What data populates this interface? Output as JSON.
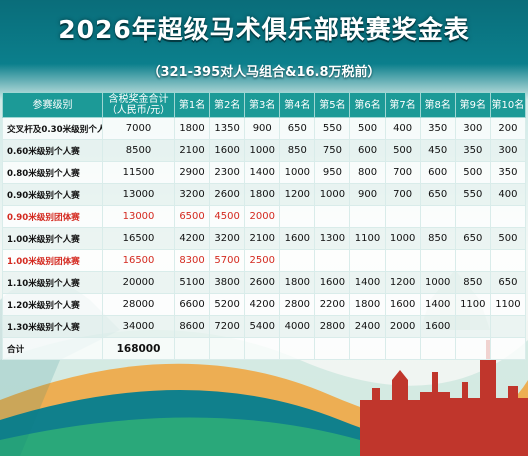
{
  "title": "2026年超级马术俱乐部联赛奖金表",
  "subtitle": "（321-395对人马组合&16.8万税前）",
  "headers": [
    "参赛级别",
    "含税奖金合计（人民币/元）",
    "第1名",
    "第2名",
    "第3名",
    "第4名",
    "第5名",
    "第6名",
    "第7名",
    "第8名",
    "第9名",
    "第10名"
  ],
  "rows": [
    {
      "level": "交叉杆及0.30米级别个人赛",
      "total": "7000",
      "prizes": [
        "1800",
        "1350",
        "900",
        "650",
        "550",
        "500",
        "400",
        "350",
        "300",
        "200"
      ],
      "highlight": false
    },
    {
      "level": "0.60米级别个人赛",
      "total": "8500",
      "prizes": [
        "2100",
        "1600",
        "1000",
        "850",
        "750",
        "600",
        "500",
        "450",
        "350",
        "300"
      ],
      "highlight": false
    },
    {
      "level": "0.80米级别个人赛",
      "total": "11500",
      "prizes": [
        "2900",
        "2300",
        "1400",
        "1000",
        "950",
        "800",
        "700",
        "600",
        "500",
        "350"
      ],
      "highlight": false
    },
    {
      "level": "0.90米级别个人赛",
      "total": "13000",
      "prizes": [
        "3200",
        "2600",
        "1800",
        "1200",
        "1000",
        "900",
        "700",
        "650",
        "550",
        "400"
      ],
      "highlight": false
    },
    {
      "level": "0.90米级别团体赛",
      "total": "13000",
      "prizes": [
        "6500",
        "4500",
        "2000",
        "",
        "",
        "",
        "",
        "",
        "",
        ""
      ],
      "highlight": true
    },
    {
      "level": "1.00米级别个人赛",
      "total": "16500",
      "prizes": [
        "4200",
        "3200",
        "2100",
        "1600",
        "1300",
        "1100",
        "1000",
        "850",
        "650",
        "500"
      ],
      "highlight": false
    },
    {
      "level": "1.00米级别团体赛",
      "total": "16500",
      "prizes": [
        "8300",
        "5700",
        "2500",
        "",
        "",
        "",
        "",
        "",
        "",
        ""
      ],
      "highlight": true
    },
    {
      "level": "1.10米级别个人赛",
      "total": "20000",
      "prizes": [
        "5100",
        "3800",
        "2600",
        "1800",
        "1600",
        "1400",
        "1200",
        "1000",
        "850",
        "650"
      ],
      "highlight": false
    },
    {
      "level": "1.20米级别个人赛",
      "total": "28000",
      "prizes": [
        "6600",
        "5200",
        "4200",
        "2800",
        "2200",
        "1800",
        "1600",
        "1400",
        "1100",
        "1100"
      ],
      "highlight": false
    },
    {
      "level": "1.30米级别个人赛",
      "total": "34000",
      "prizes": [
        "8600",
        "7200",
        "5400",
        "4000",
        "2800",
        "2400",
        "2000",
        "1600",
        "",
        ""
      ],
      "highlight": false
    }
  ],
  "footer": {
    "label": "合计",
    "total": "168000"
  },
  "colors": {
    "header": "#1c9a97",
    "highlight_text": "#d42a20",
    "title_bg": "#0a6d7a"
  }
}
